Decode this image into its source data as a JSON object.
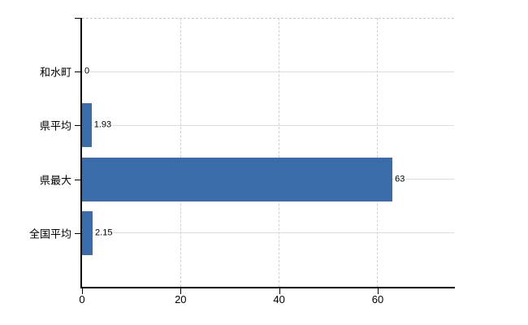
{
  "chart_data": {
    "type": "bar",
    "orientation": "horizontal",
    "title": "",
    "xlabel": "",
    "ylabel": "",
    "categories": [
      "和水町",
      "県平均",
      "県最大",
      "全国平均"
    ],
    "values": [
      0,
      1.93,
      63,
      2.15
    ],
    "value_labels": [
      "0",
      "1.93",
      "63",
      "2.15"
    ],
    "xticks": [
      0,
      20,
      40,
      60
    ],
    "xtick_labels": [
      "0",
      "20",
      "40",
      "60"
    ],
    "xlim": [
      0,
      75.5
    ],
    "legend": "none",
    "grid": {
      "vertical_style": "dashed",
      "horizontal_style": "solid"
    },
    "colors": {
      "bar": "#3b6caa",
      "axis": "#000000",
      "grid_vertical": "#d0d0d0",
      "grid_horizontal": "#d8ded8",
      "plot_border_top": "#c9c9c9",
      "text": "#000000",
      "background": "#ffffff"
    }
  }
}
